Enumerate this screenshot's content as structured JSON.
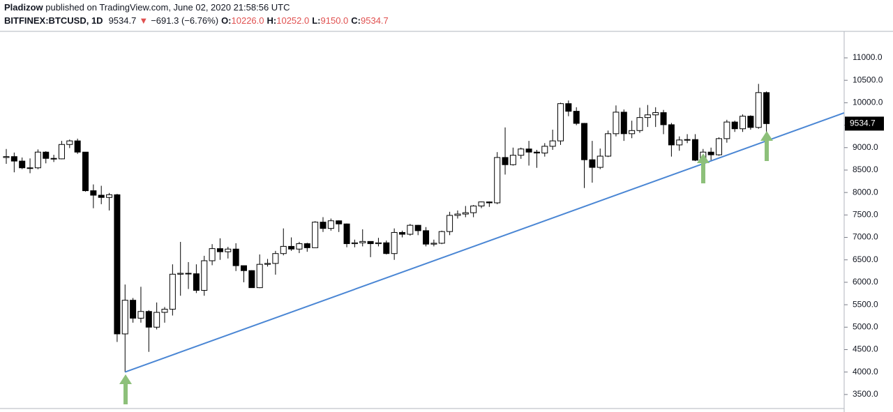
{
  "header": {
    "publisher": "Pladizow",
    "published": " published on TradingView.com, June 02, 2020 21:58:56 UTC",
    "symbol": "BITFINEX:BTCUSD, 1D",
    "last": "9534.7",
    "change": "−691.3 (−6.76%)",
    "fields": [
      {
        "label": "O:",
        "value": "10226.0"
      },
      {
        "label": "H:",
        "value": "10252.0"
      },
      {
        "label": "L:",
        "value": "9150.0"
      },
      {
        "label": "C:",
        "value": "9534.7"
      }
    ]
  },
  "chart_data": {
    "type": "candlestick",
    "up_color": "#ffffff",
    "down_color": "#000000",
    "outline_color": "#000000",
    "open": [
      8780,
      8800,
      8700,
      8550,
      8550,
      8900,
      8760,
      8750,
      9070,
      9150,
      8900,
      8040,
      7940,
      7890,
      7950,
      4850,
      5600,
      5200,
      5350,
      5000,
      5330,
      5400,
      6180,
      6200,
      6190,
      5820,
      6480,
      6750,
      6680,
      6740,
      6370,
      6260,
      5880,
      6400,
      6420,
      6640,
      6800,
      6740,
      6860,
      6770,
      7340,
      7200,
      7370,
      7300,
      6860,
      6880,
      6910,
      6860,
      6880,
      6640,
      7110,
      7070,
      7270,
      7150,
      6850,
      6870,
      7130,
      7490,
      7520,
      7550,
      7700,
      7790,
      7770,
      8780,
      8620,
      8830,
      8970,
      8900,
      8880,
      9030,
      9150,
      9980,
      9810,
      9540,
      8730,
      8560,
      8810,
      9310,
      9790,
      9310,
      9380,
      9670,
      9730,
      9780,
      9510,
      9060,
      9170,
      9180,
      8720,
      8900,
      8840,
      9200,
      9570,
      9420,
      9700,
      9450,
      10226
    ],
    "high": [
      8970,
      8890,
      8780,
      8760,
      8960,
      8920,
      8840,
      9150,
      9180,
      9200,
      8900,
      8180,
      8150,
      7990,
      7970,
      5950,
      5650,
      5900,
      5380,
      5550,
      5450,
      6400,
      6900,
      6450,
      6400,
      6590,
      6850,
      6980,
      6790,
      6870,
      6370,
      6270,
      6620,
      6520,
      6700,
      7200,
      7000,
      6900,
      6880,
      7360,
      7450,
      7420,
      7380,
      7310,
      6950,
      7180,
      6910,
      6990,
      6930,
      7200,
      7150,
      7300,
      7280,
      7230,
      6950,
      7150,
      7570,
      7600,
      7700,
      7720,
      7800,
      7800,
      8900,
      9450,
      9000,
      9000,
      9150,
      8950,
      9100,
      9400,
      10000,
      10050,
      9900,
      9550,
      9150,
      8980,
      9380,
      9940,
      9850,
      9600,
      9890,
      9950,
      9900,
      9840,
      9550,
      9250,
      9300,
      9300,
      8970,
      9000,
      9230,
      9620,
      9600,
      9740,
      9720,
      10420,
      10252
    ],
    "low": [
      8640,
      8450,
      8520,
      8430,
      8520,
      8650,
      8680,
      8740,
      8990,
      8860,
      8020,
      7650,
      7740,
      7600,
      4670,
      4000,
      5100,
      5100,
      4450,
      4950,
      5100,
      5260,
      5700,
      5850,
      5760,
      5700,
      6380,
      6500,
      6530,
      6250,
      6000,
      5880,
      5870,
      6350,
      6170,
      6600,
      6700,
      6650,
      6680,
      6770,
      7120,
      7150,
      7120,
      6780,
      6780,
      6800,
      6560,
      6800,
      6620,
      6500,
      7000,
      7040,
      7050,
      6800,
      6800,
      6850,
      7050,
      7420,
      7450,
      7450,
      7650,
      7680,
      7740,
      8400,
      8600,
      8750,
      8600,
      8550,
      8800,
      8950,
      9060,
      9700,
      9500,
      8100,
      8220,
      8520,
      8790,
      9250,
      9150,
      9210,
      9330,
      9460,
      9460,
      9300,
      8800,
      8930,
      9100,
      8700,
      8640,
      8720,
      8820,
      9110,
      9350,
      9350,
      9400,
      9420,
      9150
    ],
    "close": [
      8800,
      8700,
      8550,
      8550,
      8900,
      8760,
      8750,
      9070,
      9150,
      8900,
      8040,
      7940,
      7890,
      7950,
      4850,
      5600,
      5200,
      5350,
      5000,
      5330,
      5400,
      6180,
      6200,
      6190,
      5820,
      6480,
      6750,
      6680,
      6740,
      6370,
      6260,
      5880,
      6400,
      6420,
      6640,
      6800,
      6740,
      6860,
      6770,
      7340,
      7200,
      7370,
      7300,
      6860,
      6880,
      6910,
      6860,
      6880,
      6640,
      7110,
      7070,
      7270,
      7150,
      6850,
      6870,
      7130,
      7490,
      7520,
      7550,
      7700,
      7790,
      7770,
      8780,
      8620,
      8830,
      8970,
      8900,
      8880,
      9030,
      9150,
      9980,
      9810,
      9540,
      8730,
      8560,
      8810,
      9310,
      9790,
      9310,
      9380,
      9670,
      9730,
      9780,
      9510,
      9060,
      9170,
      9180,
      8720,
      8900,
      8840,
      9200,
      9570,
      9420,
      9700,
      9450,
      10226,
      9534.7
    ],
    "ylim": [
      3110,
      11590
    ],
    "yticks": [
      {
        "value": 3500,
        "label": "3500.0"
      },
      {
        "value": 4000,
        "label": "4000.0"
      },
      {
        "value": 4500,
        "label": "4500.0"
      },
      {
        "value": 5000,
        "label": "5000.0"
      },
      {
        "value": 5500,
        "label": "5500.0"
      },
      {
        "value": 6000,
        "label": "6000.0"
      },
      {
        "value": 6500,
        "label": "6500.0"
      },
      {
        "value": 7000,
        "label": "7000.0"
      },
      {
        "value": 7500,
        "label": "7500.0"
      },
      {
        "value": 8000,
        "label": "8000.0"
      },
      {
        "value": 8500,
        "label": "8500.0"
      },
      {
        "value": 9000,
        "label": "9000.0"
      },
      {
        "value": 9500,
        "label": "9500.0"
      },
      {
        "value": 10000,
        "label": "10000.0"
      },
      {
        "value": 10500,
        "label": "10500.0"
      },
      {
        "value": 11000,
        "label": "11000.0"
      }
    ],
    "grid": false,
    "trendline": {
      "x": [
        15,
        105.8
      ],
      "y": [
        4000,
        9773
      ],
      "color": "#4a86d4"
    }
  }
}
